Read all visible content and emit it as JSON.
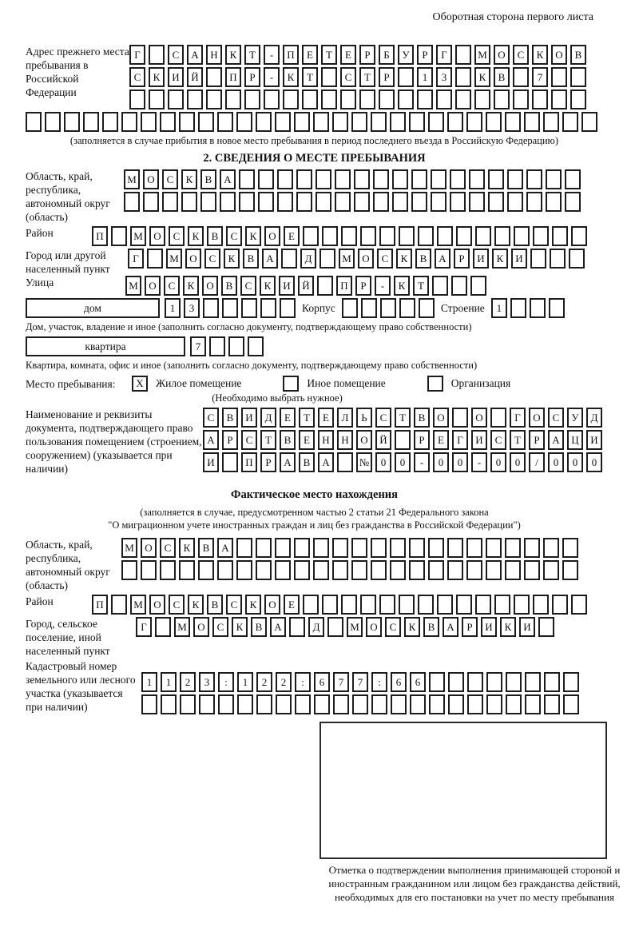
{
  "page": {
    "header": "Оборотная сторона первого листа"
  },
  "addr_block": {
    "label": "Адрес прежнего места пребывания в Российской Федерации",
    "rows": [
      {
        "t": "Г САНКТ-ПЕТЕРБУРГ МОСКОВ",
        "n": 24
      },
      {
        "t": "СКИЙ ПР-КТ СТР 13 КВ 7",
        "n": 24
      },
      {
        "t": "",
        "n": 24
      },
      {
        "t": "",
        "n": 30
      }
    ],
    "caption": "(заполняется в случае прибытия в новое место пребывания в период последнего въезда в Российскую Федерацию)"
  },
  "section2": {
    "title": "2. СВЕДЕНИЯ О МЕСТЕ ПРЕБЫВАНИЯ",
    "oblast": {
      "label": "Область, край, республика, автономный округ (область)",
      "rows": [
        {
          "t": "МОСКВА",
          "n": 24
        },
        {
          "t": "",
          "n": 24
        }
      ]
    },
    "raion": {
      "label": "Район",
      "row": {
        "t": "П МОСКВСКОЕ",
        "n": 26
      }
    },
    "gorod": {
      "label": "Город или другой населенный пункт",
      "row": {
        "t": "Г МОСКВА Д МОСКВАРИКИ",
        "n": 24
      }
    },
    "ulitsa": {
      "label": "Улица",
      "row": {
        "t": "МОСКОВСКИЙ ПР-КТ",
        "n": 19
      }
    },
    "dom": {
      "box_label": "дом",
      "row": {
        "t": "13",
        "n": 7
      },
      "korpus_label": "Корпус",
      "korpus_row": {
        "t": "",
        "n": 5
      },
      "stroenie_label": "Строение",
      "stroenie_row": {
        "t": "1",
        "n": 4
      },
      "caption": "Дом, участок, владение и иное (заполнить согласно документу, подтверждающему право собственности)"
    },
    "kvartira": {
      "box_label": "квартира",
      "row": {
        "t": "7",
        "n": 4
      },
      "caption": "Квартира, комната, офис и иное (заполнить согласно документу, подтверждающему право собственности)"
    },
    "mesto": {
      "label": "Место пребывания:",
      "options": [
        {
          "mark": "X",
          "label": "Жилое помещение"
        },
        {
          "mark": "",
          "label": "Иное помещение"
        },
        {
          "mark": "",
          "label": "Организация"
        }
      ],
      "caption": "(Необходимо выбрать нужное)"
    },
    "doc": {
      "label": "Наименование и реквизиты документа, подтверждающего право пользования помещением (строением, сооружением) (указывается при наличии)",
      "rows": [
        {
          "t": "СВИДЕТЕЛЬСТВО О ГОСУД",
          "n": 21
        },
        {
          "t": "АРСТВЕННОЙ РЕГИСТРАЦИ",
          "n": 21
        },
        {
          "t": "И ПРАВА №00-00-00/000",
          "n": 21
        }
      ]
    }
  },
  "fact": {
    "title": "Фактическое место нахождения",
    "caption1": "(заполняется в случае, предусмотренном частью 2 статьи 21 Федерального закона",
    "caption2": "\"О миграционном учете иностранных граждан и лиц без гражданства в Российской Федерации\")",
    "oblast": {
      "label": "Область, край, республика, автономный округ (область)",
      "rows": [
        {
          "t": "МОСКВА",
          "n": 24
        },
        {
          "t": "",
          "n": 24
        }
      ]
    },
    "raion": {
      "label": "Район",
      "row": {
        "t": "П МОСКВСКОЕ",
        "n": 26
      }
    },
    "gorod": {
      "label": "Город, сельское поселение, иной населенный пункт",
      "row": {
        "t": "Г МОСКВА Д МОСКВАРИКИ",
        "n": 22
      }
    },
    "kadastr": {
      "label": "Кадастровый номер земельного или лесного участка (указывается при наличии)",
      "rows": [
        {
          "t": "1123:122:677:66",
          "n": 23
        },
        {
          "t": "",
          "n": 23
        }
      ]
    },
    "stamp_caption": "Отметка о подтверждении выполнения принимающей стороной и иностранным гражданином или лицом без гражданства действий, необходимых для его постановки на учет по месту пребывания"
  }
}
